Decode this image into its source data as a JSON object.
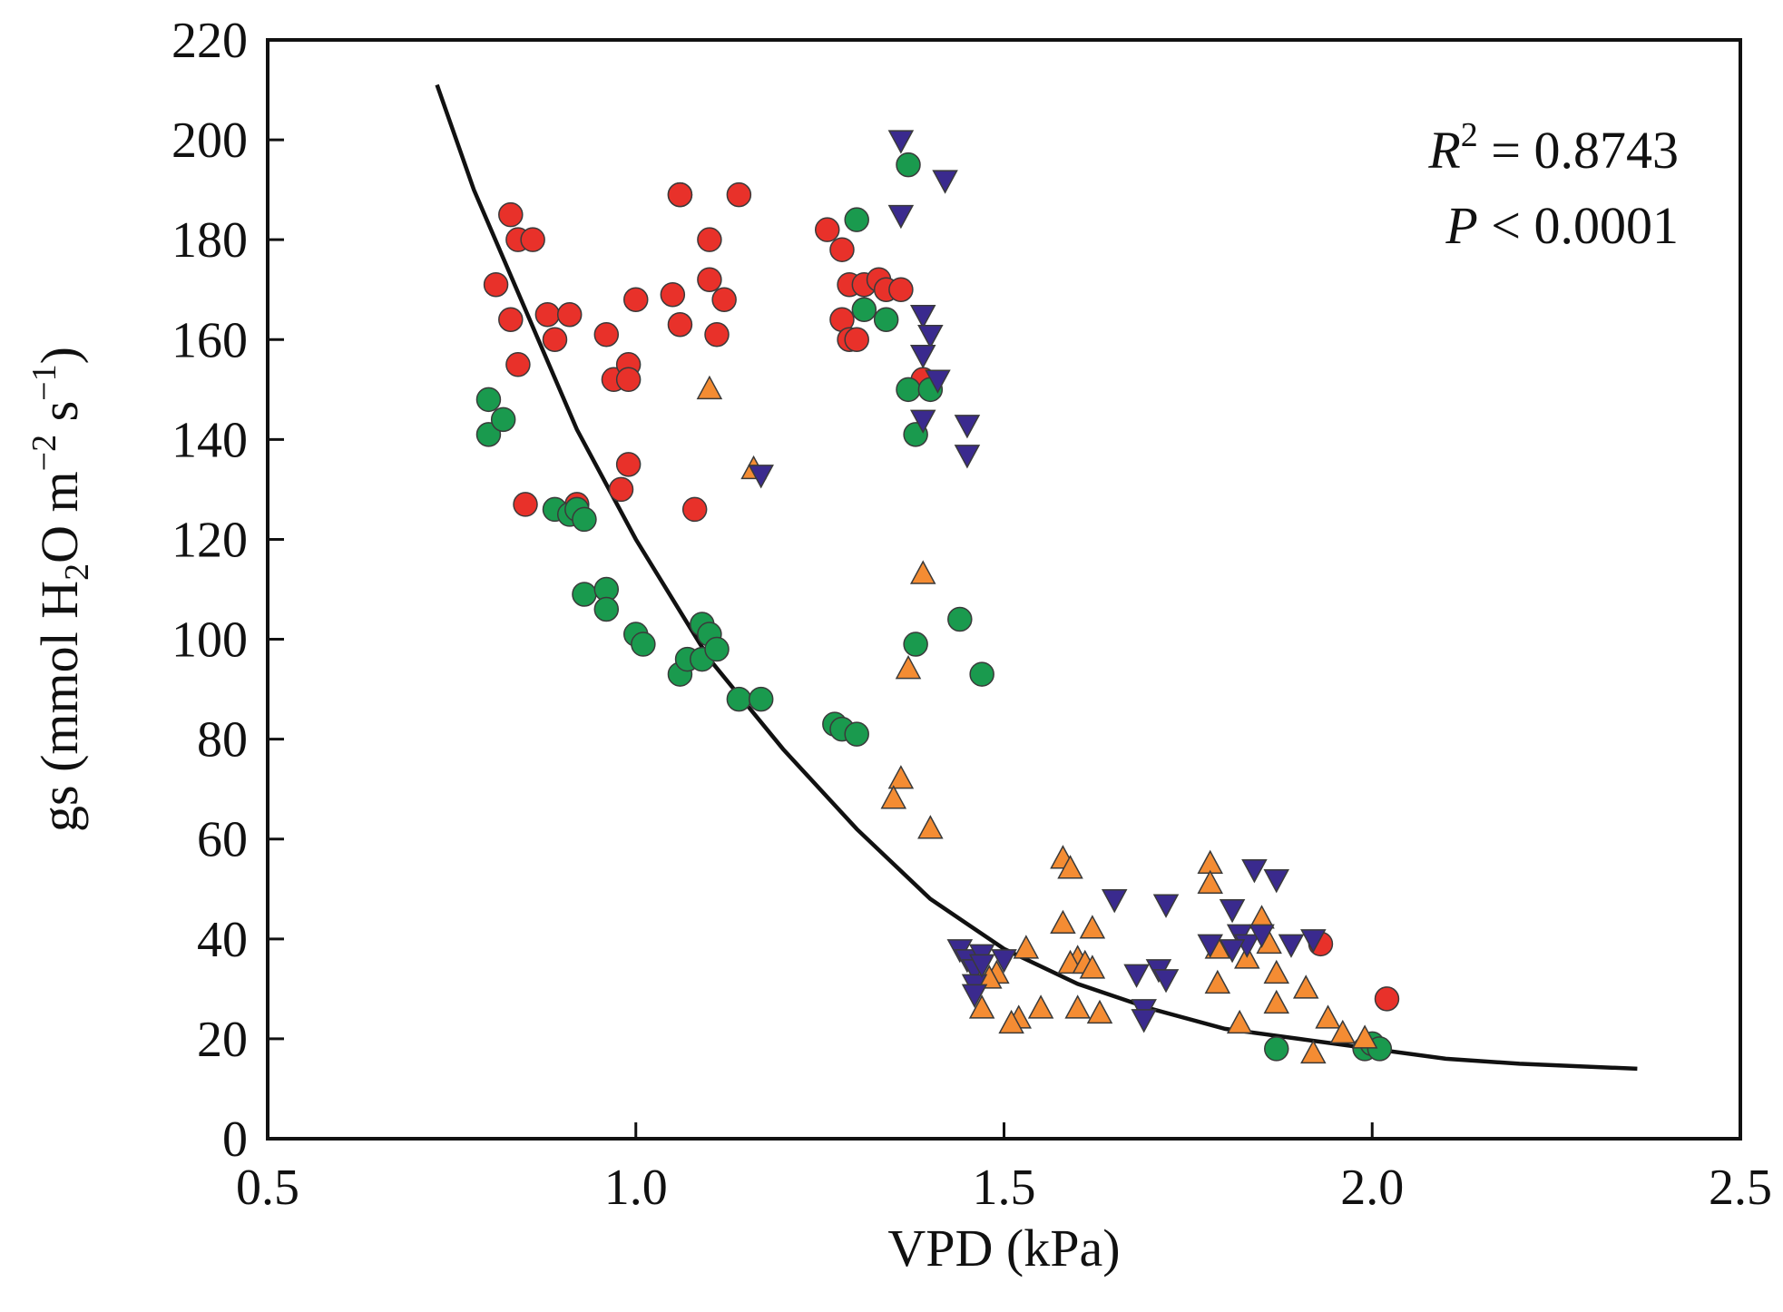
{
  "chart_data": {
    "type": "scatter",
    "xlabel": "VPD (kPa)",
    "ylabel_parts": [
      "gs (mmol H",
      "2",
      "O m",
      "−2",
      " s",
      "−1",
      ")"
    ],
    "xlim": [
      0.5,
      2.5
    ],
    "ylim": [
      0,
      220
    ],
    "x_ticks": [
      0.5,
      1.0,
      1.5,
      2.0,
      2.5
    ],
    "x_tick_labels": [
      "0.5",
      "1.0",
      "1.5",
      "2.0",
      "2.5"
    ],
    "y_ticks": [
      0,
      20,
      40,
      60,
      80,
      100,
      120,
      140,
      160,
      180,
      200,
      220
    ],
    "y_tick_labels": [
      "0",
      "20",
      "40",
      "60",
      "80",
      "100",
      "120",
      "140",
      "160",
      "180",
      "200",
      "220"
    ],
    "grid": false,
    "legend": "none",
    "annotations": {
      "r2_symbol": "R",
      "r2_exp": "2",
      "r2_value": " = 0.8743",
      "p_symbol": "P",
      "p_value": " < 0.0001"
    },
    "fit_curve": {
      "type": "exponential-decay",
      "color": "#111111",
      "points": [
        [
          0.73,
          211
        ],
        [
          0.78,
          190
        ],
        [
          0.85,
          166
        ],
        [
          0.92,
          142
        ],
        [
          1.0,
          120
        ],
        [
          1.1,
          96
        ],
        [
          1.2,
          78
        ],
        [
          1.3,
          62
        ],
        [
          1.4,
          48
        ],
        [
          1.5,
          38
        ],
        [
          1.6,
          31
        ],
        [
          1.7,
          26
        ],
        [
          1.8,
          22
        ],
        [
          1.9,
          20
        ],
        [
          2.0,
          18
        ],
        [
          2.1,
          16
        ],
        [
          2.2,
          15
        ],
        [
          2.36,
          14
        ]
      ]
    },
    "series": [
      {
        "marker": "circle",
        "color": "#e8312a",
        "points": [
          [
            0.83,
            185
          ],
          [
            0.84,
            180
          ],
          [
            0.86,
            180
          ],
          [
            0.81,
            171
          ],
          [
            0.83,
            164
          ],
          [
            0.88,
            165
          ],
          [
            0.91,
            165
          ],
          [
            0.89,
            160
          ],
          [
            0.84,
            155
          ],
          [
            0.96,
            161
          ],
          [
            0.97,
            152
          ],
          [
            0.99,
            155
          ],
          [
            0.99,
            152
          ],
          [
            1.0,
            168
          ],
          [
            1.05,
            169
          ],
          [
            1.06,
            189
          ],
          [
            1.06,
            189
          ],
          [
            1.14,
            189
          ],
          [
            1.1,
            180
          ],
          [
            1.1,
            172
          ],
          [
            1.12,
            168
          ],
          [
            1.06,
            163
          ],
          [
            1.11,
            161
          ],
          [
            0.99,
            135
          ],
          [
            0.98,
            130
          ],
          [
            1.08,
            126
          ],
          [
            0.85,
            127
          ],
          [
            0.92,
            127
          ],
          [
            1.26,
            182
          ],
          [
            1.28,
            178
          ],
          [
            1.29,
            171
          ],
          [
            1.31,
            171
          ],
          [
            1.33,
            172
          ],
          [
            1.34,
            170
          ],
          [
            1.36,
            170
          ],
          [
            1.28,
            164
          ],
          [
            1.29,
            160
          ],
          [
            1.3,
            160
          ],
          [
            1.39,
            152
          ],
          [
            1.93,
            39
          ],
          [
            2.02,
            28
          ]
        ]
      },
      {
        "marker": "circle",
        "color": "#1a9a4e",
        "points": [
          [
            0.8,
            148
          ],
          [
            0.8,
            141
          ],
          [
            0.82,
            144
          ],
          [
            0.89,
            126
          ],
          [
            0.91,
            125
          ],
          [
            0.92,
            126
          ],
          [
            0.93,
            124
          ],
          [
            0.93,
            109
          ],
          [
            0.96,
            110
          ],
          [
            0.96,
            106
          ],
          [
            1.0,
            101
          ],
          [
            1.01,
            99
          ],
          [
            1.06,
            93
          ],
          [
            1.07,
            96
          ],
          [
            1.09,
            96
          ],
          [
            1.09,
            103
          ],
          [
            1.1,
            101
          ],
          [
            1.11,
            98
          ],
          [
            1.14,
            88
          ],
          [
            1.17,
            88
          ],
          [
            1.27,
            83
          ],
          [
            1.28,
            82
          ],
          [
            1.3,
            81
          ],
          [
            1.3,
            184
          ],
          [
            1.37,
            195
          ],
          [
            1.31,
            166
          ],
          [
            1.34,
            164
          ],
          [
            1.37,
            150
          ],
          [
            1.4,
            150
          ],
          [
            1.38,
            141
          ],
          [
            1.38,
            99
          ],
          [
            1.44,
            104
          ],
          [
            1.47,
            93
          ],
          [
            1.87,
            18
          ],
          [
            1.99,
            18
          ],
          [
            2.0,
            19
          ],
          [
            2.01,
            18
          ]
        ]
      },
      {
        "marker": "triangle-up",
        "color": "#f48c33",
        "points": [
          [
            1.1,
            150
          ],
          [
            1.16,
            134
          ],
          [
            1.39,
            113
          ],
          [
            1.37,
            94
          ],
          [
            1.36,
            72
          ],
          [
            1.35,
            68
          ],
          [
            1.4,
            62
          ],
          [
            1.58,
            56
          ],
          [
            1.59,
            54
          ],
          [
            1.58,
            43
          ],
          [
            1.62,
            42
          ],
          [
            1.6,
            36
          ],
          [
            1.59,
            35
          ],
          [
            1.61,
            35
          ],
          [
            1.62,
            34
          ],
          [
            1.6,
            26
          ],
          [
            1.63,
            25
          ],
          [
            1.55,
            26
          ],
          [
            1.52,
            24
          ],
          [
            1.51,
            23
          ],
          [
            1.53,
            38
          ],
          [
            1.49,
            33
          ],
          [
            1.48,
            32
          ],
          [
            1.47,
            26
          ],
          [
            1.78,
            55
          ],
          [
            1.78,
            51
          ],
          [
            1.79,
            38
          ],
          [
            1.79,
            31
          ],
          [
            1.83,
            36
          ],
          [
            1.85,
            44
          ],
          [
            1.86,
            39
          ],
          [
            1.87,
            33
          ],
          [
            1.87,
            27
          ],
          [
            1.91,
            30
          ],
          [
            1.94,
            24
          ],
          [
            1.96,
            21
          ],
          [
            1.92,
            17
          ],
          [
            1.99,
            20
          ],
          [
            1.82,
            23
          ]
        ]
      },
      {
        "marker": "triangle-down",
        "color": "#3a2a8e",
        "points": [
          [
            1.36,
            200
          ],
          [
            1.42,
            192
          ],
          [
            1.36,
            185
          ],
          [
            1.39,
            165
          ],
          [
            1.4,
            161
          ],
          [
            1.39,
            157
          ],
          [
            1.41,
            152
          ],
          [
            1.39,
            144
          ],
          [
            1.45,
            143
          ],
          [
            1.45,
            137
          ],
          [
            1.17,
            133
          ],
          [
            1.44,
            38
          ],
          [
            1.45,
            36
          ],
          [
            1.46,
            34
          ],
          [
            1.47,
            37
          ],
          [
            1.46,
            31
          ],
          [
            1.46,
            29
          ],
          [
            1.47,
            35
          ],
          [
            1.5,
            36
          ],
          [
            1.65,
            48
          ],
          [
            1.68,
            33
          ],
          [
            1.69,
            26
          ],
          [
            1.69,
            24
          ],
          [
            1.71,
            34
          ],
          [
            1.72,
            32
          ],
          [
            1.72,
            47
          ],
          [
            1.78,
            39
          ],
          [
            1.81,
            46
          ],
          [
            1.82,
            41
          ],
          [
            1.83,
            39
          ],
          [
            1.84,
            54
          ],
          [
            1.87,
            52
          ],
          [
            1.85,
            41
          ],
          [
            1.89,
            39
          ],
          [
            1.92,
            40
          ],
          [
            1.81,
            38
          ]
        ]
      }
    ]
  }
}
